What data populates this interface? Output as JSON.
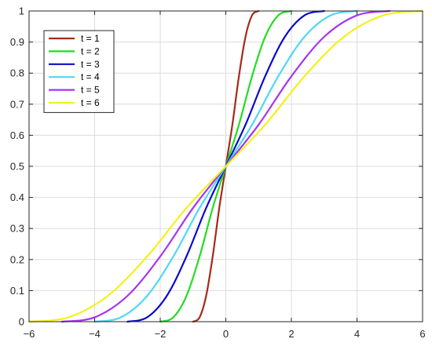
{
  "chart_data": {
    "type": "line",
    "title": "",
    "xlabel": "",
    "ylabel": "",
    "xlim": [
      -6,
      6
    ],
    "ylim": [
      0,
      1
    ],
    "grid": true,
    "legend_position": "top-left",
    "x_ticks": [
      -6,
      -4,
      -2,
      0,
      2,
      4,
      6
    ],
    "x_tick_labels": [
      "−6",
      "−4",
      "−2",
      "0",
      "2",
      "4",
      "6"
    ],
    "y_ticks": [
      0,
      0.1,
      0.2,
      0.3,
      0.4,
      0.5,
      0.6,
      0.7,
      0.8,
      0.9,
      1
    ],
    "y_tick_labels": [
      "0",
      "0.1",
      "0.2",
      "0.3",
      "0.4",
      "0.5",
      "0.6",
      "0.7",
      "0.8",
      "0.9",
      "1"
    ],
    "series": [
      {
        "name": "t = 1",
        "color": "#a52a1a",
        "x": [
          -1,
          -0.8,
          -0.6,
          -0.4,
          -0.2,
          0,
          0.2,
          0.4,
          0.6,
          0.8,
          1
        ],
        "y": [
          0,
          0.014,
          0.083,
          0.21,
          0.366,
          0.5,
          0.634,
          0.79,
          0.917,
          0.986,
          1
        ]
      },
      {
        "name": "t = 2",
        "color": "#22dd22",
        "x": [
          -2,
          -1.6,
          -1.2,
          -0.8,
          -0.4,
          0,
          0.4,
          0.8,
          1.2,
          1.6,
          2
        ],
        "y": [
          0,
          0.014,
          0.083,
          0.21,
          0.366,
          0.5,
          0.634,
          0.79,
          0.917,
          0.986,
          1
        ]
      },
      {
        "name": "t = 3",
        "color": "#0a0acc",
        "x": [
          -3,
          -2.4,
          -1.8,
          -1.2,
          -0.6,
          0,
          0.6,
          1.2,
          1.8,
          2.4,
          3
        ],
        "y": [
          0,
          0.014,
          0.083,
          0.21,
          0.366,
          0.5,
          0.634,
          0.79,
          0.917,
          0.986,
          1
        ]
      },
      {
        "name": "t = 4",
        "color": "#4fd8f5",
        "x": [
          -4,
          -3.2,
          -2.4,
          -1.6,
          -0.8,
          0,
          0.8,
          1.6,
          2.4,
          3.2,
          4
        ],
        "y": [
          0,
          0.014,
          0.083,
          0.21,
          0.366,
          0.5,
          0.634,
          0.79,
          0.917,
          0.986,
          1
        ]
      },
      {
        "name": "t = 5",
        "color": "#a833f0",
        "x": [
          -5,
          -4,
          -3,
          -2,
          -1,
          0,
          1,
          2,
          3,
          4,
          5
        ],
        "y": [
          0,
          0.014,
          0.083,
          0.21,
          0.366,
          0.5,
          0.634,
          0.79,
          0.917,
          0.986,
          1
        ]
      },
      {
        "name": "t = 6",
        "color": "#f2f21a",
        "x": [
          -6,
          -4.8,
          -3.6,
          -2.4,
          -1.2,
          0,
          1.2,
          2.4,
          3.6,
          4.8,
          6
        ],
        "y": [
          0,
          0.014,
          0.083,
          0.21,
          0.366,
          0.5,
          0.634,
          0.79,
          0.917,
          0.986,
          1
        ]
      }
    ]
  }
}
